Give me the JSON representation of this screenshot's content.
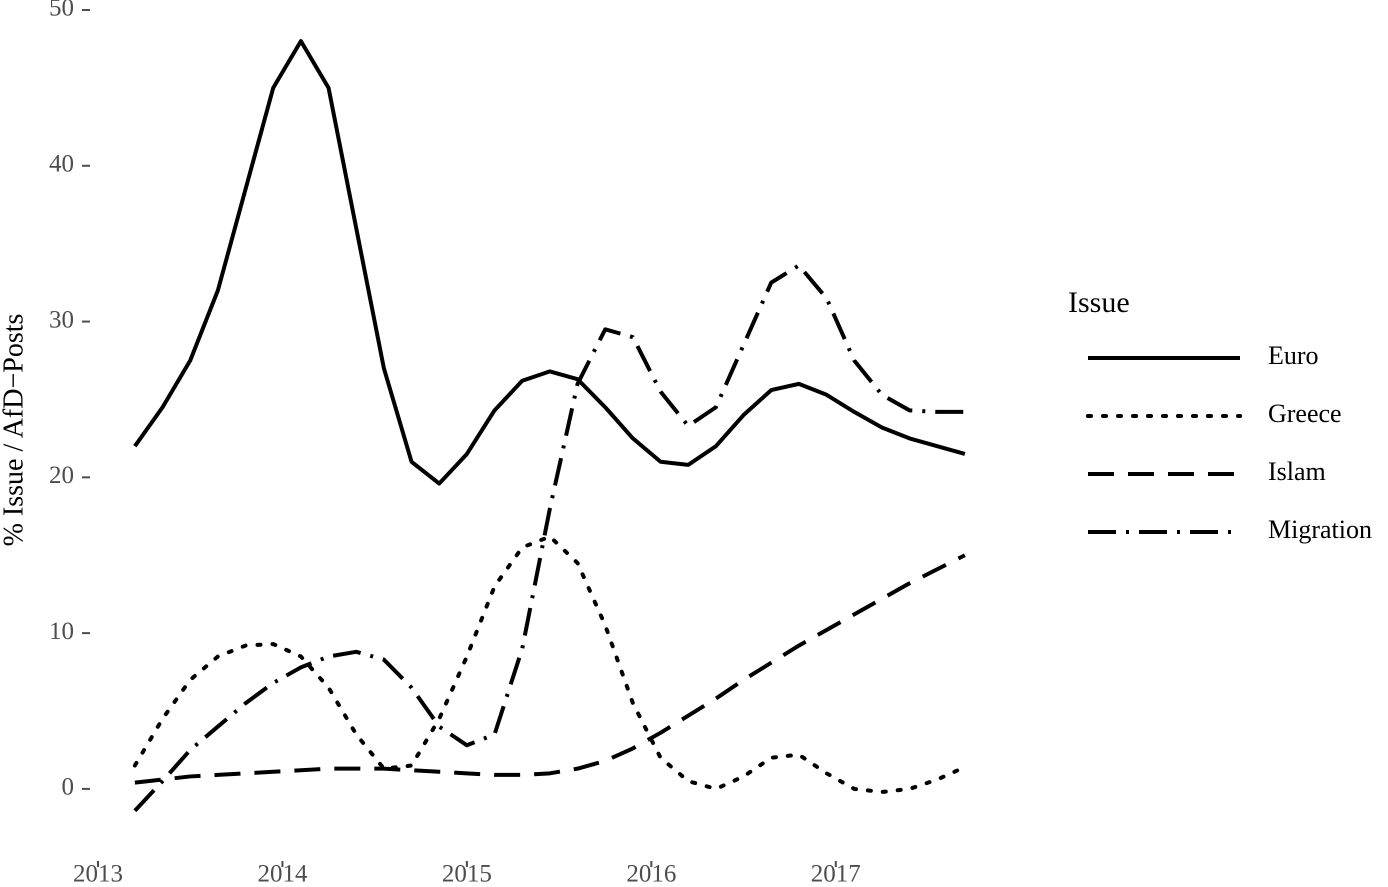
{
  "chart_data": {
    "type": "line",
    "y_label": "% Issue / AfD−Posts",
    "legend_title": "Issue",
    "legend_position": "right",
    "grid": false,
    "x": [
      2013.2,
      2013.35,
      2013.5,
      2013.65,
      2013.8,
      2013.95,
      2014.1,
      2014.25,
      2014.4,
      2014.55,
      2014.7,
      2014.85,
      2015.0,
      2015.15,
      2015.3,
      2015.45,
      2015.6,
      2015.75,
      2015.9,
      2016.05,
      2016.2,
      2016.35,
      2016.5,
      2016.65,
      2016.8,
      2016.95,
      2017.1,
      2017.25,
      2017.4,
      2017.55,
      2017.7
    ],
    "series": [
      {
        "name": "Euro",
        "color": "#000000",
        "linetype": "solid",
        "values": [
          22,
          24.5,
          27.5,
          32,
          38.5,
          45,
          48,
          45,
          36,
          27,
          21,
          19.6,
          21.5,
          24.3,
          26.2,
          26.8,
          26.3,
          24.5,
          22.5,
          21,
          20.8,
          22,
          24,
          25.6,
          26,
          25.3,
          24.2,
          23.2,
          22.5,
          22,
          21.5
        ]
      },
      {
        "name": "Greece",
        "color": "#000000",
        "linetype": "dotted",
        "values": [
          1.5,
          4.5,
          7,
          8.5,
          9.2,
          9.3,
          8.5,
          6.5,
          3.5,
          1.3,
          1.5,
          4.5,
          8.5,
          13,
          15.5,
          16.2,
          14.5,
          10.5,
          5.5,
          2,
          0.5,
          0,
          0.8,
          2,
          2.2,
          1,
          0,
          -0.2,
          0,
          0.6,
          1.4
        ]
      },
      {
        "name": "Islam",
        "color": "#000000",
        "linetype": "dashed",
        "values": [
          0.4,
          0.6,
          0.8,
          0.9,
          1.0,
          1.1,
          1.2,
          1.3,
          1.3,
          1.3,
          1.2,
          1.1,
          1.0,
          0.9,
          0.9,
          1.0,
          1.3,
          1.8,
          2.6,
          3.6,
          4.7,
          5.8,
          7.0,
          8.1,
          9.2,
          10.2,
          11.2,
          12.2,
          13.2,
          14.1,
          15.0
        ]
      },
      {
        "name": "Migration",
        "color": "#000000",
        "linetype": "dotdash",
        "values": [
          -1.4,
          0.5,
          2.5,
          4.0,
          5.5,
          6.8,
          7.8,
          8.5,
          8.8,
          8.3,
          6.5,
          4.0,
          2.8,
          3.5,
          9,
          18,
          26,
          29.5,
          29,
          25.5,
          23.3,
          24.5,
          28.5,
          32.5,
          33.6,
          31.5,
          27.5,
          25.3,
          24.3,
          24.2,
          24.2
        ]
      }
    ],
    "xlim": [
      2013,
      2017.95
    ],
    "xticks": [
      2013,
      2014,
      2015,
      2016,
      2017
    ],
    "ylim": [
      -4.5,
      50
    ],
    "yticks": [
      0,
      10,
      20,
      30,
      40,
      50
    ]
  }
}
